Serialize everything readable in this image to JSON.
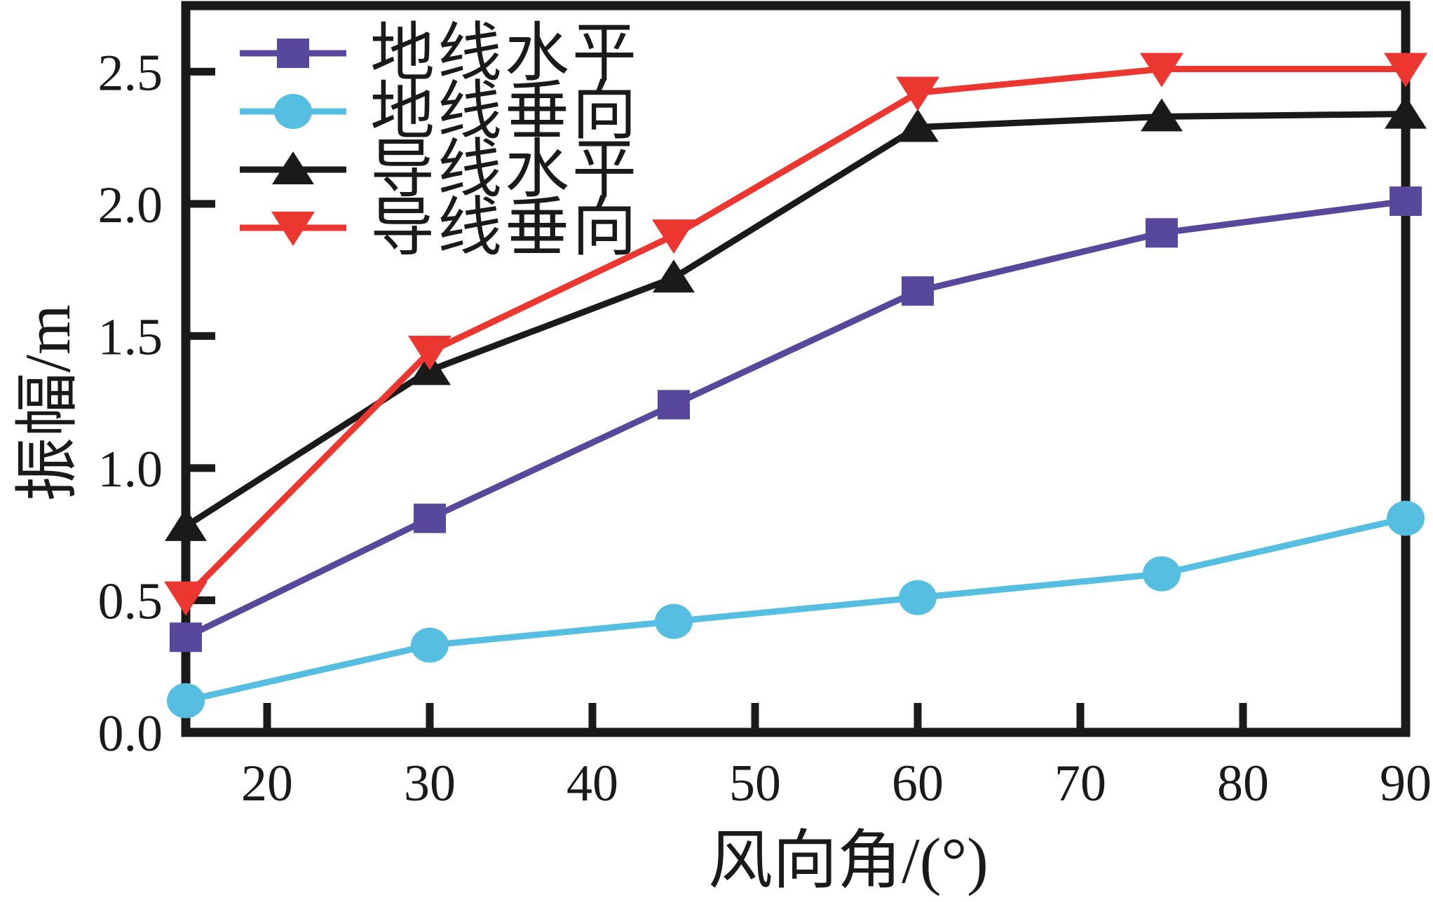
{
  "chart_data": {
    "type": "line",
    "title": "",
    "xlabel": "风向角/(°)",
    "ylabel": "振幅/m",
    "x": [
      15,
      30,
      45,
      60,
      75,
      90
    ],
    "xlim": [
      15,
      90
    ],
    "ylim": [
      0,
      2.75
    ],
    "x_ticks": [
      20,
      30,
      40,
      50,
      60,
      70,
      80,
      90
    ],
    "x_tick_labels": [
      "20",
      "30",
      "40",
      "50",
      "60",
      "70",
      "80",
      "90"
    ],
    "y_ticks": [
      0,
      0.5,
      1.0,
      1.5,
      2.0,
      2.5
    ],
    "y_tick_labels": [
      "0.0",
      "0.5",
      "1.0",
      "1.5",
      "2.0",
      "2.5"
    ],
    "grid": false,
    "legend_position": "top-left",
    "axis_color": "#1A1A1A",
    "background_color": "#FFFFFF",
    "series": [
      {
        "name": "地线水平",
        "marker": "square",
        "color": "#57489B",
        "values": [
          0.36,
          0.81,
          1.24,
          1.67,
          1.89,
          2.01
        ]
      },
      {
        "name": "地线垂向",
        "marker": "circle",
        "color": "#55BEE1",
        "values": [
          0.12,
          0.33,
          0.42,
          0.51,
          0.6,
          0.81
        ]
      },
      {
        "name": "导线水平",
        "marker": "triangle-up",
        "color": "#1A1A1A",
        "values": [
          0.78,
          1.37,
          1.72,
          2.29,
          2.33,
          2.34
        ]
      },
      {
        "name": "导线垂向",
        "marker": "triangle-down",
        "color": "#EC3731",
        "values": [
          0.51,
          1.44,
          1.88,
          2.42,
          2.51,
          2.51
        ]
      }
    ]
  }
}
